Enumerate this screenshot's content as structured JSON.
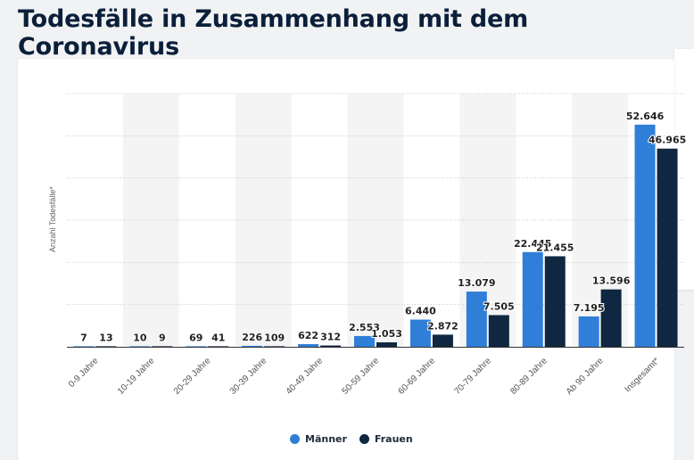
{
  "page": {
    "title": "Todesfälle in Zusammenhang mit dem Coronavirus"
  },
  "colors": {
    "maenner": "#2f7ed8",
    "frauen": "#0f2741",
    "band": "#f4f4f4",
    "grid": "#c8c8c8",
    "axis": "#333333"
  },
  "chart_data": {
    "type": "bar",
    "ylabel": "Anzahl Todesfälle*",
    "ylim": [
      0,
      60000
    ],
    "grid": true,
    "legend_position": "bottom",
    "categories": [
      "0-9 Jahre",
      "10-19 Jahre",
      "20-29 Jahre",
      "30-39 Jahre",
      "40-49 Jahre",
      "50-59 Jahre",
      "60-69 Jahre",
      "70-79 Jahre",
      "80-89 Jahre",
      "Ab 90 Jahre",
      "Insgesamt*"
    ],
    "series": [
      {
        "name": "Männer",
        "values": [
          7,
          10,
          69,
          226,
          622,
          2553,
          6440,
          13079,
          22445,
          7195,
          52646
        ],
        "labels": [
          "7",
          "10",
          "69",
          "226",
          "622",
          "2.553",
          "6.440",
          "13.079",
          "22.445",
          "7.195",
          "52.646"
        ]
      },
      {
        "name": "Frauen",
        "values": [
          13,
          9,
          41,
          109,
          312,
          1053,
          2872,
          7505,
          21455,
          13596,
          46965
        ],
        "labels": [
          "13",
          "9",
          "41",
          "109",
          "312",
          "1.053",
          "2.872",
          "7.505",
          "21.455",
          "13.596",
          "46.965"
        ]
      }
    ]
  }
}
